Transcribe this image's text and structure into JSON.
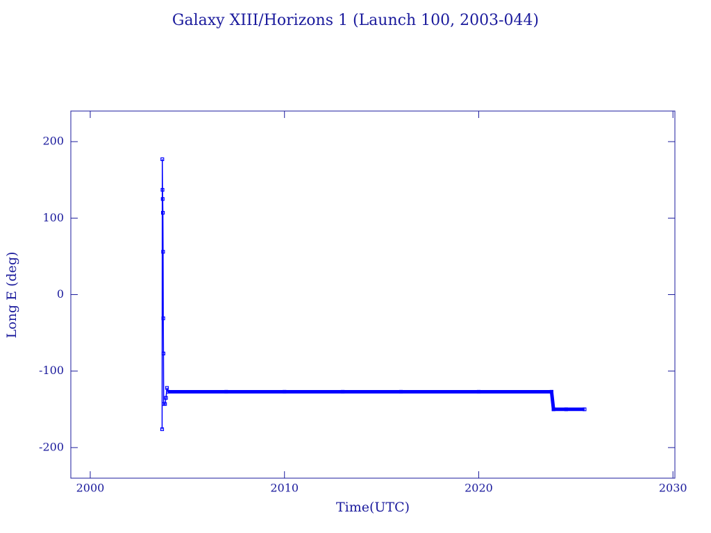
{
  "chart_data": {
    "type": "line",
    "title": "Galaxy XIII/Horizons 1 (Launch 100, 2003-044)",
    "x_label": "Time(UTC)",
    "y_label": "Long E (deg)",
    "xlim": [
      1999,
      2030.1
    ],
    "ylim": [
      -240,
      240
    ],
    "xticks": [
      2000,
      2010,
      2020,
      2030
    ],
    "yticks": [
      -200,
      -100,
      0,
      100,
      200
    ],
    "grid": false,
    "series": [
      {
        "color": "#0000ff",
        "x": [
          2003.7,
          2003.71,
          2003.72,
          2003.73,
          2003.74,
          2003.75,
          2003.76,
          2003.77,
          2003.78,
          2003.85,
          2003.9,
          2003.95,
          2004.0,
          2007,
          2010,
          2013,
          2016,
          2020,
          2023.75,
          2023.85,
          2024.5,
          2025.45
        ],
        "values": [
          -176,
          177,
          137,
          125,
          107,
          56,
          -31,
          -77,
          -143,
          -143,
          -135,
          -122,
          -127,
          -127,
          -127,
          -127,
          -127,
          -127,
          -127,
          -150,
          -150,
          -150
        ]
      }
    ]
  }
}
